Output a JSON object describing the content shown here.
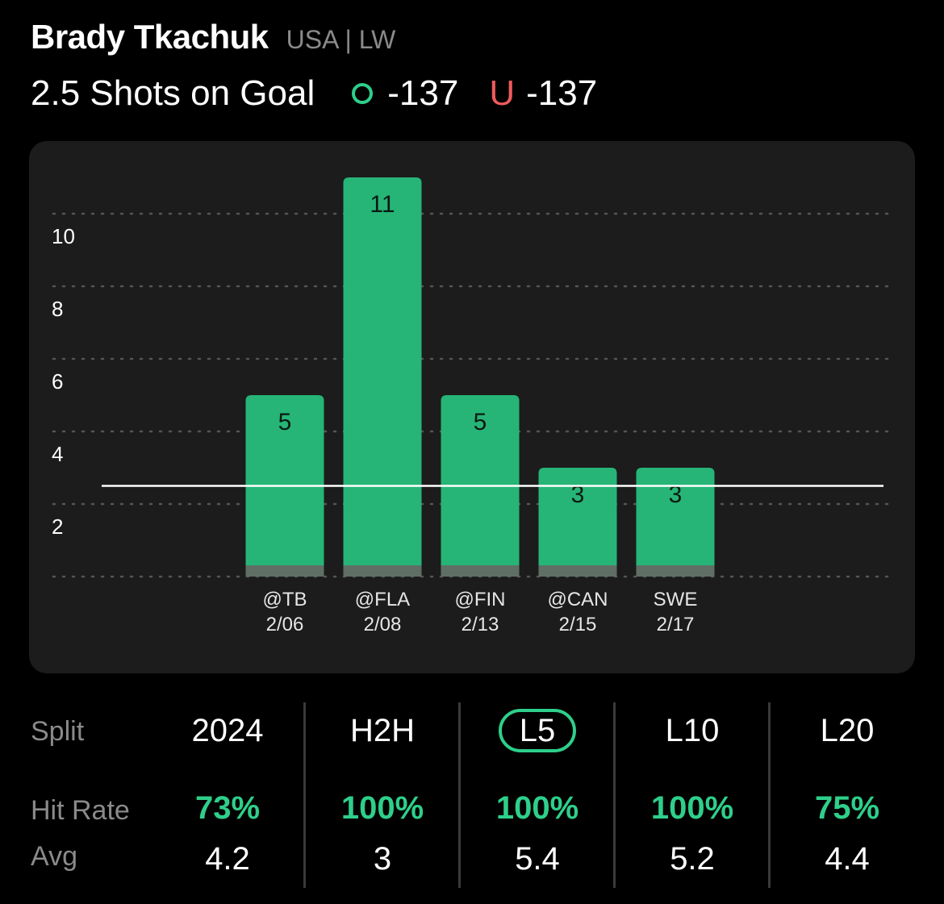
{
  "header": {
    "player_name": "Brady Tkachuk",
    "player_meta": "USA | LW",
    "line": "2.5 Shots on Goal",
    "over_odds": "-137",
    "under_label": "U",
    "under_odds": "-137"
  },
  "chart_data": {
    "type": "bar",
    "categories": [
      "@TB\n2/06",
      "@FLA\n2/08",
      "@FIN\n2/13",
      "@CAN\n2/15",
      "SWE\n2/17"
    ],
    "opponents": [
      "@TB",
      "@FLA",
      "@FIN",
      "@CAN",
      "SWE"
    ],
    "dates": [
      "2/06",
      "2/08",
      "2/13",
      "2/15",
      "2/17"
    ],
    "values": [
      5,
      11,
      5,
      3,
      3
    ],
    "y_ticks": [
      2,
      4,
      6,
      8,
      10
    ],
    "ylim": [
      0,
      11
    ],
    "threshold": 2.5,
    "grid": true,
    "bar_color": "#26b577",
    "threshold_color": "#ffffff"
  },
  "stats": {
    "labels": {
      "split": "Split",
      "hit_rate": "Hit Rate",
      "avg": "Avg"
    },
    "columns": [
      {
        "split": "2024",
        "hit_rate": "73%",
        "avg": "4.2",
        "selected": false
      },
      {
        "split": "H2H",
        "hit_rate": "100%",
        "avg": "3",
        "selected": false
      },
      {
        "split": "L5",
        "hit_rate": "100%",
        "avg": "5.4",
        "selected": true
      },
      {
        "split": "L10",
        "hit_rate": "100%",
        "avg": "5.2",
        "selected": false
      },
      {
        "split": "L20",
        "hit_rate": "75%",
        "avg": "4.4",
        "selected": false
      }
    ]
  },
  "colors": {
    "accent": "#2ecf8a",
    "under": "#ef5b5b",
    "card": "#1c1c1c",
    "muted": "#8a8a8a"
  }
}
